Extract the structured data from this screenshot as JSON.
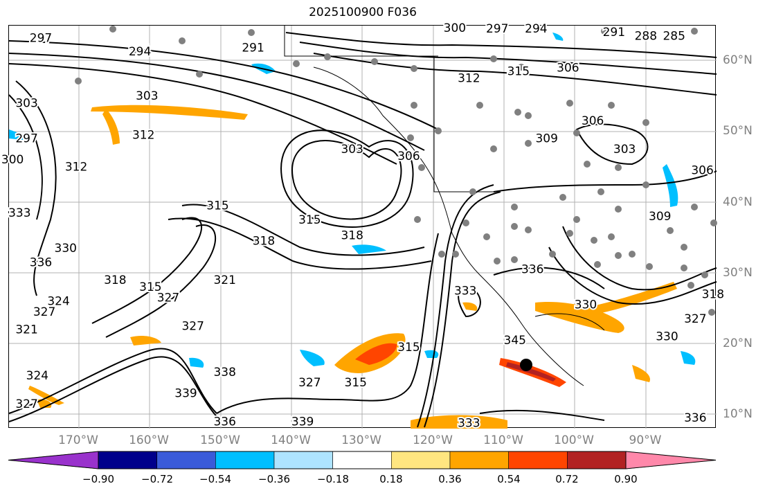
{
  "title": "2025100900 F036",
  "lat_labels": [
    "60°N",
    "50°N",
    "40°N",
    "30°N",
    "20°N",
    "10°N"
  ],
  "lon_labels": [
    "170°W",
    "160°W",
    "150°W",
    "140°W",
    "130°W",
    "120°W",
    "110°W",
    "100°W",
    "90°W"
  ],
  "colorbar": {
    "ticks": [
      "−0.90",
      "−0.72",
      "−0.54",
      "−0.36",
      "−0.18",
      "0.18",
      "0.36",
      "0.54",
      "0.72",
      "0.90"
    ],
    "colors": [
      "#9932cc",
      "#00008b",
      "#3a5bd9",
      "#00bfff",
      "#aee4ff",
      "#ffffff",
      "#ffe680",
      "#ffa500",
      "#ff4500",
      "#b22222",
      "#ff88aa"
    ]
  },
  "contour_labels": [
    {
      "text": "297",
      "lon": -175.5,
      "lat": 63.2
    },
    {
      "text": "294",
      "lon": -161.5,
      "lat": 61.3
    },
    {
      "text": "291",
      "lon": -145.5,
      "lat": 61.8
    },
    {
      "text": "303",
      "lon": -160.5,
      "lat": 55.0
    },
    {
      "text": "303",
      "lon": -177.5,
      "lat": 54.0
    },
    {
      "text": "297",
      "lon": -177.5,
      "lat": 49.0
    },
    {
      "text": "300",
      "lon": -179.5,
      "lat": 46.0
    },
    {
      "text": "312",
      "lon": -161.0,
      "lat": 49.5
    },
    {
      "text": "312",
      "lon": -170.5,
      "lat": 45.0
    },
    {
      "text": "315",
      "lon": -150.5,
      "lat": 39.5
    },
    {
      "text": "315",
      "lon": -137.5,
      "lat": 37.5
    },
    {
      "text": "318",
      "lon": -131.5,
      "lat": 35.3
    },
    {
      "text": "318",
      "lon": -144.0,
      "lat": 34.5
    },
    {
      "text": "318",
      "lon": -165.0,
      "lat": 29.0
    },
    {
      "text": "315",
      "lon": -160.0,
      "lat": 28.0
    },
    {
      "text": "327",
      "lon": -157.5,
      "lat": 26.5
    },
    {
      "text": "327",
      "lon": -154.0,
      "lat": 22.5
    },
    {
      "text": "324",
      "lon": -173.0,
      "lat": 26.0
    },
    {
      "text": "327",
      "lon": -175.0,
      "lat": 24.5
    },
    {
      "text": "321",
      "lon": -177.5,
      "lat": 22.0
    },
    {
      "text": "330",
      "lon": -172.0,
      "lat": 33.5
    },
    {
      "text": "336",
      "lon": -175.5,
      "lat": 31.5
    },
    {
      "text": "333",
      "lon": -178.5,
      "lat": 38.5
    },
    {
      "text": "321",
      "lon": -149.5,
      "lat": 29.0
    },
    {
      "text": "324",
      "lon": -176.0,
      "lat": 15.5
    },
    {
      "text": "327",
      "lon": -177.5,
      "lat": 11.5
    },
    {
      "text": "339",
      "lon": -155.0,
      "lat": 13.0
    },
    {
      "text": "336",
      "lon": -149.5,
      "lat": 9.0
    },
    {
      "text": "338",
      "lon": -149.5,
      "lat": 16.0
    },
    {
      "text": "339",
      "lon": -138.5,
      "lat": 9.0
    },
    {
      "text": "327",
      "lon": -137.5,
      "lat": 14.5
    },
    {
      "text": "315",
      "lon": -131.0,
      "lat": 14.5
    },
    {
      "text": "315",
      "lon": -123.5,
      "lat": 19.5
    },
    {
      "text": "303",
      "lon": -131.5,
      "lat": 47.5
    },
    {
      "text": "306",
      "lon": -123.5,
      "lat": 46.5
    },
    {
      "text": "300",
      "lon": -117.0,
      "lat": 64.6
    },
    {
      "text": "297",
      "lon": -111.0,
      "lat": 64.5
    },
    {
      "text": "294",
      "lon": -105.5,
      "lat": 64.5
    },
    {
      "text": "291",
      "lon": -94.5,
      "lat": 64.0
    },
    {
      "text": "288",
      "lon": -90.0,
      "lat": 63.5
    },
    {
      "text": "285",
      "lon": -86.0,
      "lat": 63.5
    },
    {
      "text": "312",
      "lon": -115.0,
      "lat": 57.5
    },
    {
      "text": "315",
      "lon": -108.0,
      "lat": 58.5
    },
    {
      "text": "306",
      "lon": -101.0,
      "lat": 59.0
    },
    {
      "text": "309",
      "lon": -104.0,
      "lat": 49.0
    },
    {
      "text": "306",
      "lon": -97.5,
      "lat": 51.5
    },
    {
      "text": "303",
      "lon": -93.0,
      "lat": 47.5
    },
    {
      "text": "306",
      "lon": -82.0,
      "lat": 44.5
    },
    {
      "text": "309",
      "lon": -88.0,
      "lat": 38.0
    },
    {
      "text": "336",
      "lon": -106.0,
      "lat": 30.5
    },
    {
      "text": "333",
      "lon": -115.5,
      "lat": 27.5
    },
    {
      "text": "330",
      "lon": -98.5,
      "lat": 25.5
    },
    {
      "text": "327",
      "lon": -83.0,
      "lat": 23.5
    },
    {
      "text": "330",
      "lon": -87.0,
      "lat": 21.0
    },
    {
      "text": "318",
      "lon": -80.5,
      "lat": 27.0
    },
    {
      "text": "345",
      "lon": -108.5,
      "lat": 20.5
    },
    {
      "text": "333",
      "lon": -115.0,
      "lat": 8.8
    },
    {
      "text": "336",
      "lon": -83.0,
      "lat": 9.5
    }
  ]
}
